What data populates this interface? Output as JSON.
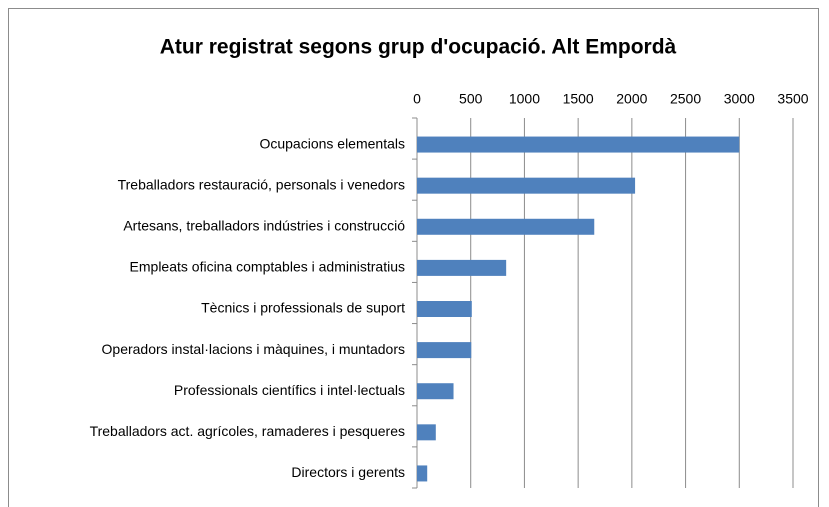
{
  "chart_data": {
    "type": "bar",
    "orientation": "horizontal",
    "title": "Atur registrat segons grup d'ocupació. Alt Empordà",
    "categories": [
      "Ocupacions elementals",
      "Treballadors restauració, personals i venedors",
      "Artesans, treballadors indústries i construcció",
      "Empleats oficina comptables i administratius",
      "Tècnics i professionals de suport",
      "Operadors instal·lacions i màquines, i muntadors",
      "Professionals científics i intel·lectuals",
      "Treballadors act. agrícoles, ramaderes i pesqueres",
      "Directors i gerents"
    ],
    "values": [
      3000,
      2030,
      1650,
      830,
      510,
      505,
      340,
      175,
      95
    ],
    "color": "#4f81bd",
    "xlim": [
      0,
      3500
    ],
    "xticks": [
      0,
      500,
      1000,
      1500,
      2000,
      2500,
      3000,
      3500
    ],
    "grid": true
  }
}
